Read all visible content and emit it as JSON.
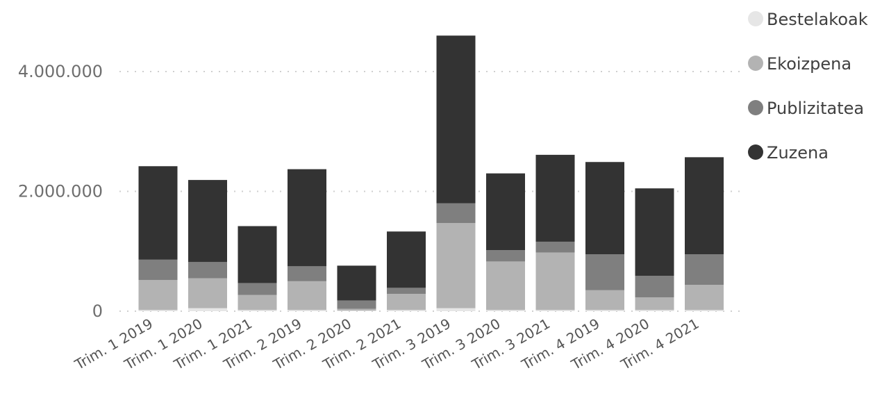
{
  "chart_data": {
    "type": "bar",
    "stacked": true,
    "categories": [
      "Trim. 1 2019",
      "Trim. 1 2020",
      "Trim. 1 2021",
      "Trim. 2 2019",
      "Trim. 2 2020",
      "Trim. 2 2021",
      "Trim. 3 2019",
      "Trim. 3 2020",
      "Trim. 3 2021",
      "Trim. 4 2019",
      "Trim. 4 2020",
      "Trim. 4 2021"
    ],
    "series": [
      {
        "name": "Bestelakoak",
        "color": "#e6e6e6",
        "values": [
          20000,
          50000,
          20000,
          20000,
          10000,
          20000,
          50000,
          20000,
          20000,
          20000,
          20000,
          20000
        ]
      },
      {
        "name": "Ekoizpena",
        "color": "#b3b3b3",
        "values": [
          500000,
          500000,
          250000,
          480000,
          30000,
          270000,
          1420000,
          810000,
          960000,
          330000,
          210000,
          420000
        ]
      },
      {
        "name": "Publizitatea",
        "color": "#7f7f7f",
        "values": [
          340000,
          270000,
          200000,
          250000,
          140000,
          100000,
          330000,
          190000,
          180000,
          600000,
          360000,
          510000
        ]
      },
      {
        "name": "Zuzena",
        "color": "#333333",
        "values": [
          1560000,
          1370000,
          950000,
          1620000,
          580000,
          940000,
          2800000,
          1280000,
          1450000,
          1540000,
          1460000,
          1620000
        ]
      }
    ],
    "xlabel": "",
    "ylabel": "",
    "ylim": [
      0,
      4600000
    ],
    "yticks": [
      {
        "value": 0,
        "label": "0"
      },
      {
        "value": 2000000,
        "label": "2.000.000"
      },
      {
        "value": 4000000,
        "label": "4.000.000"
      }
    ],
    "legend_position": "top-right",
    "grid": true
  }
}
